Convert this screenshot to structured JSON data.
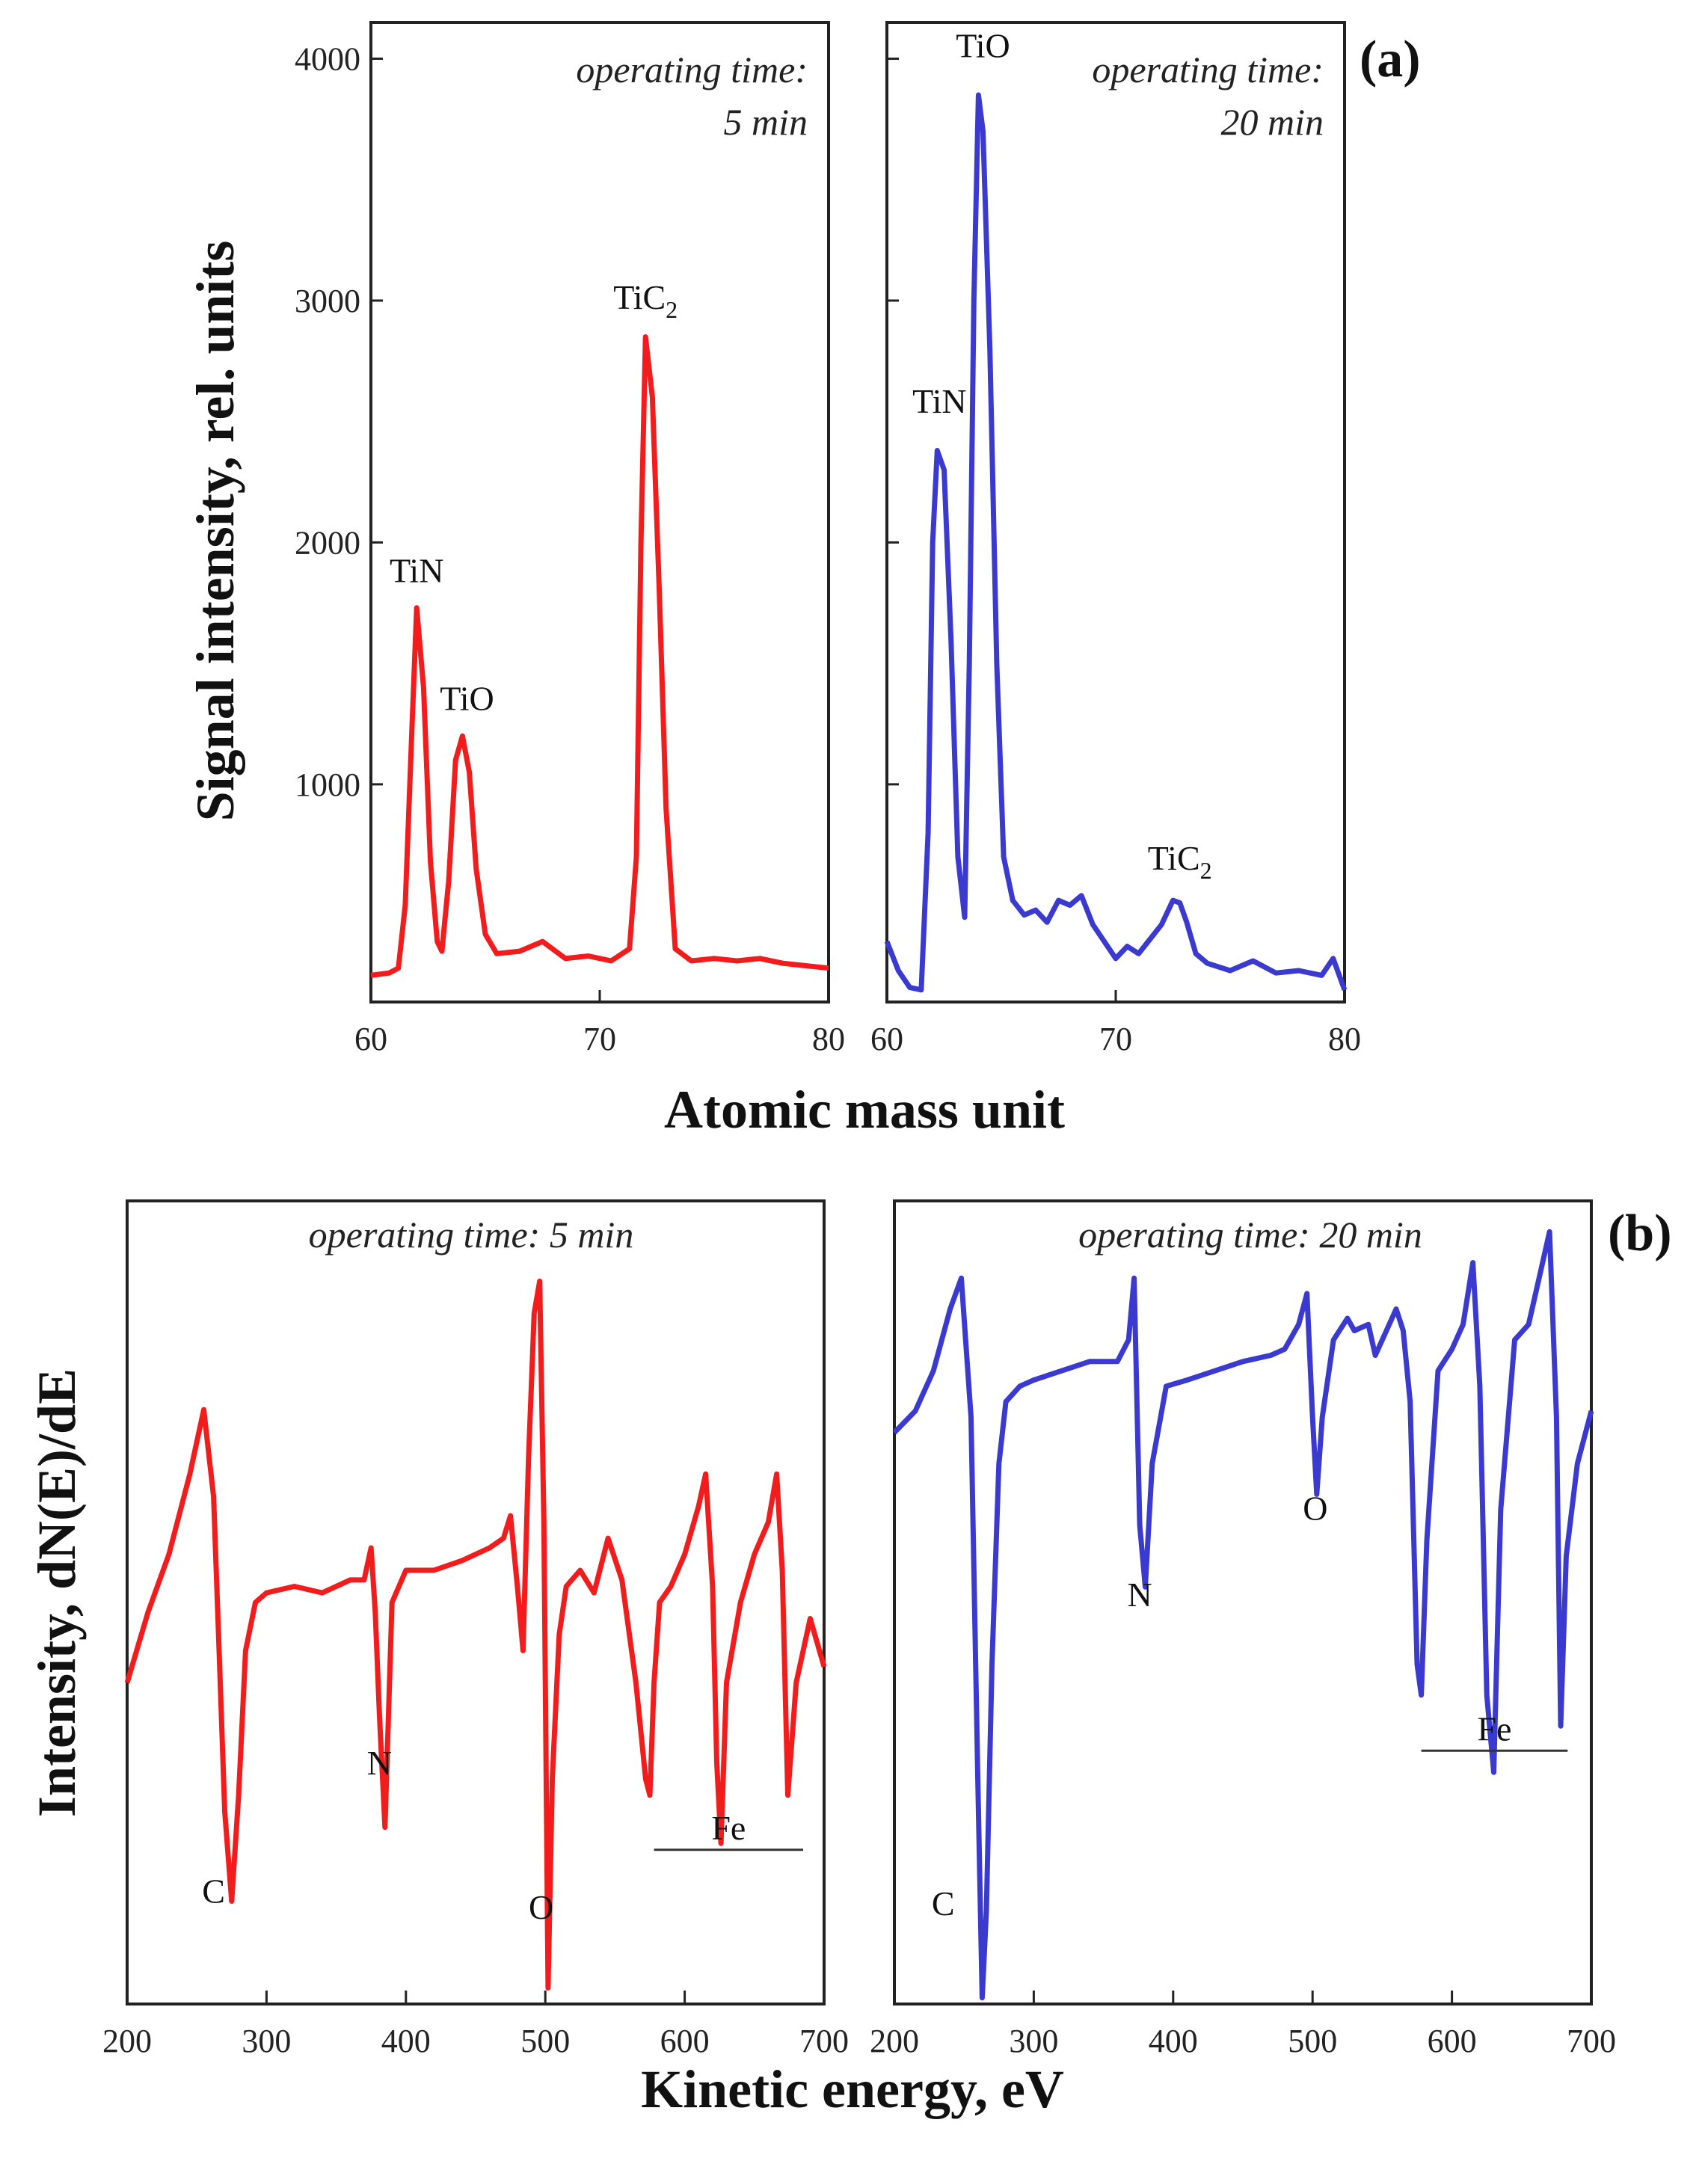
{
  "colors": {
    "red_series": "#f21c1c",
    "blue_series": "#3a3ad0"
  },
  "figure_labels": {
    "a": "(a)",
    "b": "(b)"
  },
  "axis_titles": {
    "a_y": "Signal intensity, rel. units",
    "a_x": "Atomic mass unit",
    "b_y": "Intensity, dN(E)/dE",
    "b_x": "Kinetic energy, eV"
  },
  "chart_data": [
    {
      "id": "a1",
      "type": "line",
      "color_key": "red_series",
      "annotation": [
        "operating time:",
        "5 min"
      ],
      "xlim": [
        60,
        80
      ],
      "ylim": [
        100,
        4150
      ],
      "xticks": [
        60,
        70,
        80
      ],
      "yticks": [
        1000,
        2000,
        3000,
        4000
      ],
      "ytick_labels_shown": true,
      "peak_labels": [
        {
          "text": "TiN",
          "x": 62.0,
          "y": 1750
        },
        {
          "text": "TiO",
          "x": 64.2,
          "y": 1220
        },
        {
          "text": "TiC",
          "sub": "2",
          "x": 72.0,
          "y": 2880
        }
      ],
      "x": [
        60,
        60.8,
        61.2,
        61.5,
        61.8,
        62.0,
        62.3,
        62.6,
        62.9,
        63.1,
        63.4,
        63.7,
        64.0,
        64.3,
        64.6,
        65.0,
        65.5,
        66.5,
        67.5,
        68.5,
        69.5,
        70.5,
        71.3,
        71.6,
        71.8,
        72.0,
        72.3,
        72.6,
        72.9,
        73.3,
        74.0,
        75.0,
        76.0,
        77.0,
        78.0,
        79.0,
        80.0
      ],
      "y": [
        210,
        220,
        240,
        500,
        1250,
        1730,
        1400,
        680,
        350,
        310,
        600,
        1100,
        1200,
        1050,
        650,
        380,
        300,
        310,
        350,
        280,
        290,
        270,
        320,
        700,
        2000,
        2850,
        2600,
        1800,
        900,
        320,
        270,
        280,
        270,
        280,
        260,
        250,
        240
      ]
    },
    {
      "id": "a2",
      "type": "line",
      "color_key": "blue_series",
      "annotation": [
        "operating time:",
        "20 min"
      ],
      "xlim": [
        60,
        80
      ],
      "ylim": [
        100,
        4150
      ],
      "xticks": [
        60,
        70,
        80
      ],
      "yticks": [
        1000,
        2000,
        3000,
        4000
      ],
      "ytick_labels_shown": false,
      "peak_labels": [
        {
          "text": "TiN",
          "x": 62.3,
          "y": 2450
        },
        {
          "text": "TiO",
          "x": 64.2,
          "y": 3920
        },
        {
          "text": "TiC",
          "sub": "2",
          "x": 72.8,
          "y": 560
        }
      ],
      "x": [
        60,
        60.5,
        61.0,
        61.5,
        61.8,
        62.0,
        62.2,
        62.5,
        62.8,
        63.1,
        63.4,
        63.6,
        63.8,
        64.0,
        64.2,
        64.5,
        64.8,
        65.1,
        65.5,
        66.0,
        66.5,
        67.0,
        67.5,
        68.0,
        68.5,
        69.0,
        69.5,
        70.0,
        70.5,
        71.0,
        71.5,
        72.0,
        72.5,
        72.8,
        73.1,
        73.5,
        74.0,
        75.0,
        76.0,
        77.0,
        78.0,
        79.0,
        79.5,
        80.0
      ],
      "y": [
        350,
        230,
        160,
        150,
        800,
        2000,
        2380,
        2300,
        1600,
        700,
        450,
        1500,
        3000,
        3850,
        3700,
        2800,
        1500,
        700,
        520,
        460,
        480,
        430,
        520,
        500,
        540,
        420,
        350,
        280,
        330,
        300,
        360,
        420,
        520,
        510,
        430,
        300,
        260,
        230,
        270,
        220,
        230,
        210,
        280,
        150
      ]
    },
    {
      "id": "b1",
      "type": "line",
      "color_key": "red_series",
      "annotation": [
        "operating time: 5 min"
      ],
      "xlim": [
        200,
        700
      ],
      "ylim": [
        -1.2,
        1.3
      ],
      "xticks": [
        200,
        300,
        400,
        500,
        600,
        700
      ],
      "peak_labels": [
        {
          "text": "C",
          "x": 262,
          "y": -0.95
        },
        {
          "text": "N",
          "x": 381,
          "y": -0.55
        },
        {
          "text": "O",
          "x": 497,
          "y": -1.0
        }
      ],
      "fe_label": {
        "text": "Fe",
        "x_start": 578,
        "x_end": 685,
        "y": -0.72
      },
      "x": [
        200,
        215,
        230,
        245,
        255,
        262,
        266,
        270,
        275,
        280,
        285,
        292,
        300,
        320,
        340,
        360,
        370,
        375,
        378,
        381,
        385,
        390,
        400,
        420,
        440,
        460,
        470,
        475,
        480,
        484,
        488,
        492,
        496,
        499,
        502,
        505,
        510,
        515,
        525,
        535,
        545,
        555,
        565,
        572,
        575,
        578,
        582,
        590,
        600,
        610,
        615,
        620,
        623,
        626,
        630,
        640,
        650,
        660,
        666,
        670,
        674,
        680,
        690,
        700
      ],
      "y": [
        -0.2,
        0.02,
        0.2,
        0.45,
        0.65,
        0.38,
        -0.1,
        -0.6,
        -0.88,
        -0.55,
        -0.1,
        0.05,
        0.08,
        0.1,
        0.08,
        0.12,
        0.12,
        0.22,
        0.02,
        -0.3,
        -0.65,
        0.05,
        0.15,
        0.15,
        0.18,
        0.22,
        0.25,
        0.32,
        0.1,
        -0.1,
        0.5,
        0.95,
        1.05,
        0.3,
        -1.15,
        -0.5,
        -0.05,
        0.1,
        0.15,
        0.08,
        0.25,
        0.12,
        -0.2,
        -0.5,
        -0.55,
        -0.2,
        0.05,
        0.1,
        0.2,
        0.35,
        0.45,
        0.1,
        -0.45,
        -0.7,
        -0.2,
        0.05,
        0.2,
        0.3,
        0.45,
        0.15,
        -0.55,
        -0.2,
        0.0,
        -0.15
      ]
    },
    {
      "id": "b2",
      "type": "line",
      "color_key": "blue_series",
      "annotation": [
        "operating time: 20 min"
      ],
      "xlim": [
        200,
        700
      ],
      "ylim": [
        -1.3,
        1.3
      ],
      "xticks": [
        200,
        300,
        400,
        500,
        600,
        700
      ],
      "peak_labels": [
        {
          "text": "C",
          "x": 235,
          "y": -1.08
        },
        {
          "text": "N",
          "x": 376,
          "y": -0.08
        },
        {
          "text": "O",
          "x": 502,
          "y": 0.2
        }
      ],
      "fe_label": {
        "text": "Fe",
        "x_start": 578,
        "x_end": 683,
        "y": -0.48
      },
      "x": [
        200,
        215,
        228,
        240,
        248,
        255,
        260,
        263,
        266,
        270,
        275,
        280,
        290,
        300,
        320,
        340,
        360,
        368,
        372,
        376,
        380,
        385,
        395,
        410,
        430,
        450,
        470,
        480,
        490,
        496,
        500,
        503,
        507,
        515,
        525,
        530,
        540,
        545,
        550,
        560,
        565,
        570,
        575,
        578,
        582,
        590,
        600,
        608,
        615,
        620,
        625,
        630,
        635,
        645,
        655,
        665,
        670,
        675,
        678,
        682,
        690,
        700
      ],
      "y": [
        0.55,
        0.62,
        0.75,
        0.95,
        1.05,
        0.6,
        -0.6,
        -1.28,
        -1.0,
        -0.2,
        0.45,
        0.65,
        0.7,
        0.72,
        0.75,
        0.78,
        0.78,
        0.85,
        1.05,
        0.25,
        0.05,
        0.45,
        0.7,
        0.72,
        0.75,
        0.78,
        0.8,
        0.82,
        0.9,
        1.0,
        0.6,
        0.35,
        0.6,
        0.85,
        0.92,
        0.88,
        0.9,
        0.8,
        0.85,
        0.95,
        0.88,
        0.65,
        -0.2,
        -0.3,
        0.2,
        0.75,
        0.82,
        0.9,
        1.1,
        0.7,
        -0.3,
        -0.55,
        0.3,
        0.85,
        0.9,
        1.1,
        1.2,
        0.6,
        -0.4,
        0.15,
        0.45,
        0.62
      ]
    }
  ]
}
